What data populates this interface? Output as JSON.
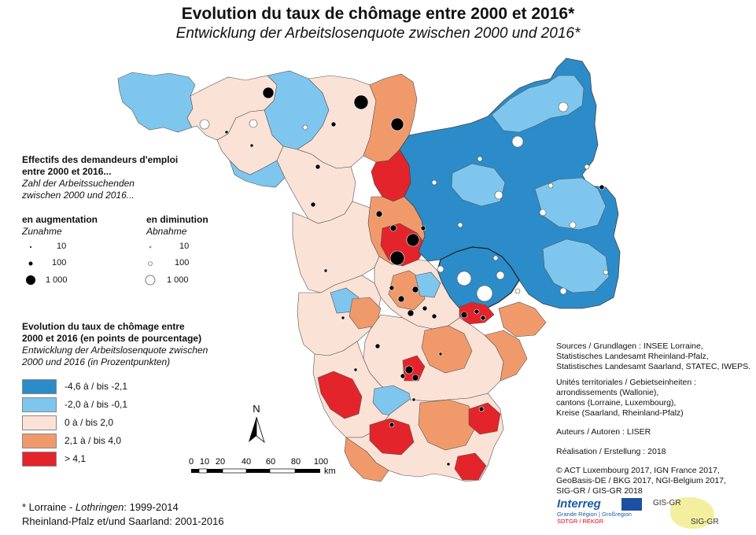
{
  "title": "Evolution du taux de chômage entre 2000 et 2016*",
  "subtitle": "Entwicklung der Arbeitslosenquote zwischen 2000 und 2016*",
  "legend_circles": {
    "heading_fr_1": "Effectifs des demandeurs d'emploi",
    "heading_fr_2": "entre 2000 et 2016...",
    "heading_de_1": "Zahl der Arbeitssuchenden",
    "heading_de_2": "zwischen 2000 und 2016...",
    "increase_fr": "en augmentation",
    "increase_de": "Zunahme",
    "decrease_fr": "en diminution",
    "decrease_de": "Abnahme",
    "sizes": [
      "10",
      "100",
      "1 000"
    ]
  },
  "legend_classes": {
    "heading_fr_1": "Evolution du taux de chômage entre",
    "heading_fr_2": "2000 et 2016 (en points de pourcentage)",
    "heading_de_1": "Entwicklung der Arbeitslosenquote zwischen",
    "heading_de_2": "2000 und 2016 (in Prozentpunkten)",
    "classes": [
      {
        "label": "-4,6 à / bis -2,1",
        "color": "#2b8cc9"
      },
      {
        "label": "-2,0 à / bis -0,1",
        "color": "#7ec6ee"
      },
      {
        "label": "0 à / bis 2,0",
        "color": "#fbe2d6"
      },
      {
        "label": "2,1 à / bis 4,0",
        "color": "#f09a6c"
      },
      {
        "label": "> 4,1",
        "color": "#e3242b"
      }
    ]
  },
  "north_label": "N",
  "scale": {
    "ticks": [
      "0",
      "10",
      "20",
      "40",
      "60",
      "80",
      "100"
    ],
    "unit": "km"
  },
  "footnote": {
    "line1_a": "* Lorraine - ",
    "line1_b": "Lothringen",
    "line1_c": ": 1999-2014",
    "line2": "Rheinland-Pfalz et/und Saarland: 2001-2016"
  },
  "sources": {
    "lines": [
      "Sources / Grundlagen : INSEE Lorraine,",
      "Statistisches Landesamt Rheinland-Pfalz,",
      "Statistisches Landesamt Saarland, STATEC, IWEPS."
    ],
    "units_lines": [
      "Unités territoriales / Gebietseinheiten :",
      "arrondissements (Wallonie),",
      "cantons (Lorraine, Luxembourg),",
      "Kreise (Saarland, Rheinland-Pfalz)"
    ],
    "authors": "Auteurs / Autoren : LISER",
    "realisation": "Réalisation / Erstellung : 2018",
    "copyright_lines": [
      "© ACT Luxembourg 2017, IGN France 2017,",
      "GeoBasis-DE / BKG 2017, NGI-Belgium 2017,",
      "SIG-GR / GIS-GR 2018"
    ]
  },
  "logos": {
    "interreg": "Interreg",
    "interreg_sub1": "Grande Région | Großregion",
    "interreg_sub2": "SDTGR / REKGR",
    "gis": "GIS-GR",
    "sig": "SIG-GR"
  }
}
